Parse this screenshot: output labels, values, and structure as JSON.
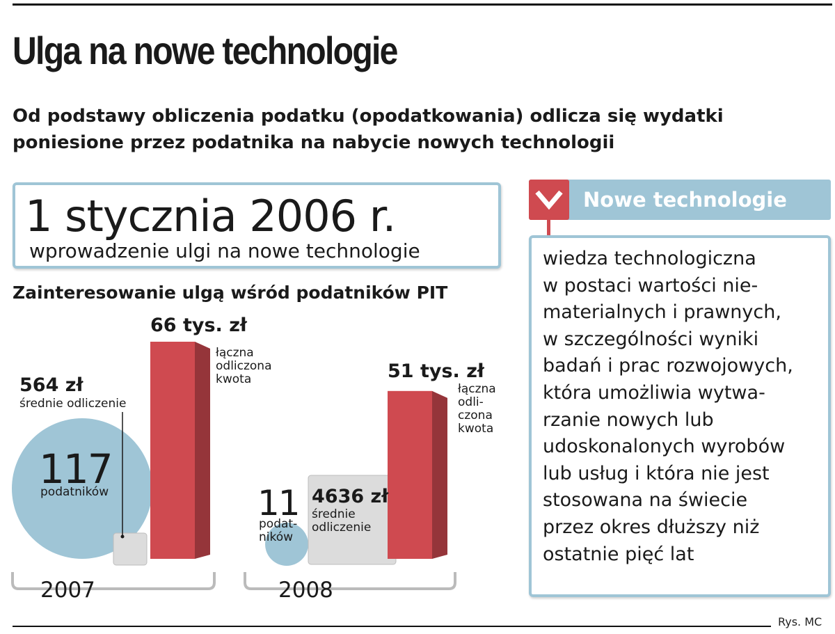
{
  "header": {
    "title": "Ulga na nowe technologie",
    "subtitle_lines": [
      "Od podstawy obliczenia podatku (opodatkowania) odlicza się wydatki",
      "poniesione przez podatnika na nabycie nowych technologii"
    ]
  },
  "intro_box": {
    "date": "1 stycznia 2006 r.",
    "description": "wprowadzenie ulgi na nowe technologie"
  },
  "chart_data": {
    "type": "bar",
    "title": "Zainteresowanie ulgą wśród podatników PIT",
    "categories": [
      "2007",
      "2008"
    ],
    "series": [
      {
        "name": "łączna odliczona kwota",
        "unit": "tys. zł",
        "values": [
          66,
          51
        ],
        "labels": [
          "66 tys. zł",
          "51 tys. zł"
        ],
        "caption_lines": [
          [
            "łączna",
            "odliczona",
            "kwota"
          ],
          [
            "łączna",
            "odli-",
            "czona",
            "kwota"
          ]
        ]
      },
      {
        "name": "podatników",
        "values": [
          117,
          11
        ],
        "labels": [
          "117",
          "11"
        ],
        "caption_lines": [
          [
            "podatników"
          ],
          [
            "podat-",
            "ników"
          ]
        ]
      },
      {
        "name": "średnie odliczenie",
        "unit": "zł",
        "values": [
          564,
          4636
        ],
        "labels": [
          "564 zł",
          "4636 zł"
        ],
        "caption_lines": [
          [
            "średnie odliczenie"
          ],
          [
            "średnie",
            "odliczenie"
          ]
        ]
      }
    ],
    "colors": {
      "bar": "#cf4a50",
      "circle": "#9fc5d6",
      "square": "#dcdcdc"
    }
  },
  "definition": {
    "heading": "Nowe technologie",
    "lines": [
      "wiedza technologiczna",
      "w postaci wartości nie-",
      "materialnych i prawnych,",
      "w szczególności wyniki",
      "badań i prac rozwojowych,",
      "która umożliwia wytwa-",
      "rzanie nowych lub",
      "udoskonalonych wyrobów",
      "lub usług i która nie jest",
      "stosowana na świecie",
      "przez okres dłuższy niż",
      "ostatnie pięć lat"
    ]
  },
  "footer": {
    "credit": "Rys. MC"
  }
}
